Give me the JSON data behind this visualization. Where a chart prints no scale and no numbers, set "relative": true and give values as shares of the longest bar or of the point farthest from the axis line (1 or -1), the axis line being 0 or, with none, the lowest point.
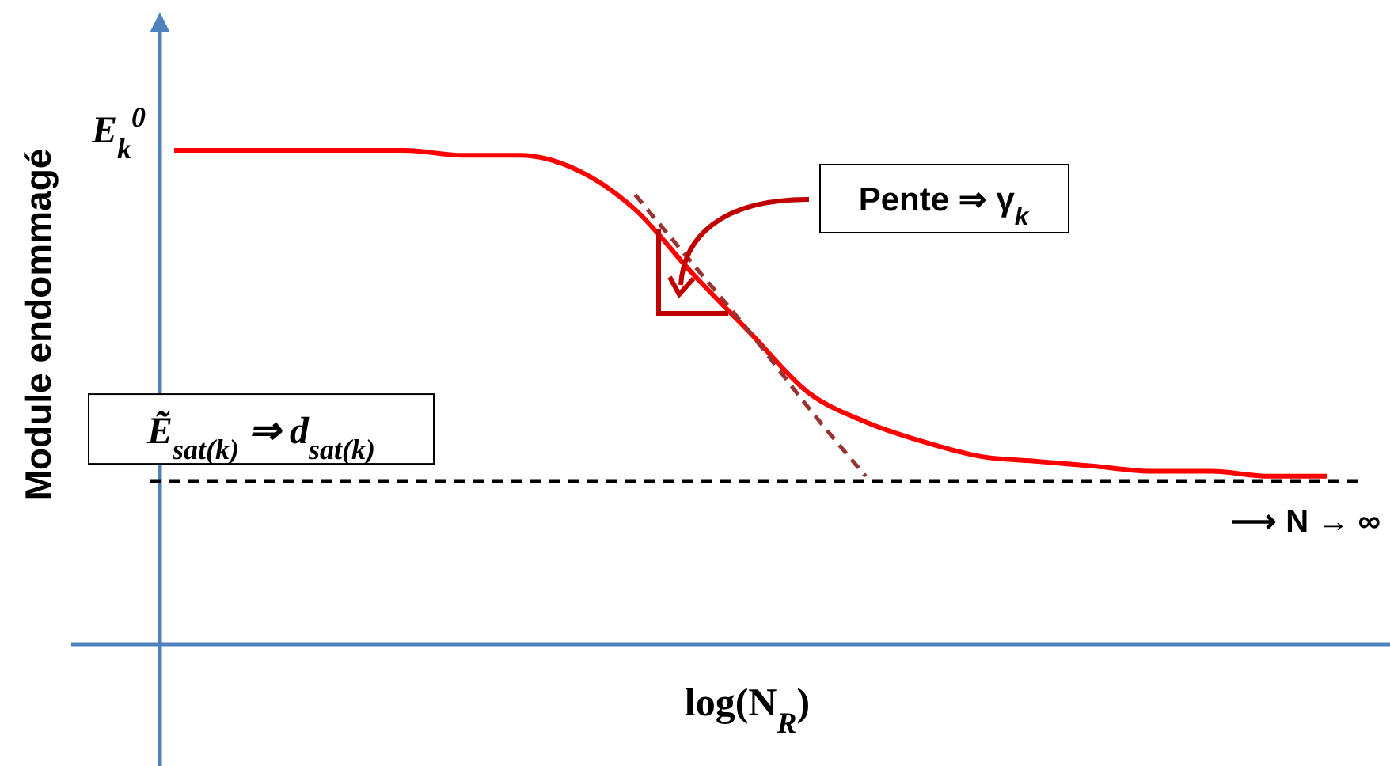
{
  "chart_data": {
    "type": "line",
    "relative": true,
    "xlabel": "log(N$_{R}$)",
    "ylabel": "Module endommagé",
    "categories": [
      null,
      null,
      null,
      null,
      null,
      null,
      null,
      null,
      null,
      null,
      null,
      null,
      null,
      null,
      null,
      null,
      null,
      null,
      null,
      null,
      null
    ],
    "series": [
      {
        "color": "#ff0000",
        "values": [
          1.0,
          1.0,
          1.0,
          1.0,
          1.0,
          0.99,
          0.99,
          0.96,
          0.88,
          0.75,
          0.63,
          0.51,
          0.45,
          0.41,
          0.38,
          0.37,
          0.36,
          0.35,
          0.35,
          0.34,
          0.34
        ]
      },
      {
        "type": "line",
        "color": "#993333",
        "line_style": "dashed",
        "values": [
          null,
          null,
          null,
          null,
          null,
          null,
          null,
          null,
          0.91,
          0.77,
          0.63,
          0.48,
          0.34,
          null,
          null,
          null,
          null,
          null,
          null,
          null,
          null
        ]
      }
    ],
    "ref_lines": [
      {
        "axis": "y",
        "value": 0.33,
        "label": "Ẽ$_{sat(k)}$ ⇒ d$_{sat(k)}$",
        "color": "#000000",
        "line_style": "dashed"
      }
    ],
    "annotations": [
      "E$_{k}$$^{0}$",
      "Pente ⇒ γ$_{k}$",
      "⟶ N → ∞"
    ]
  }
}
